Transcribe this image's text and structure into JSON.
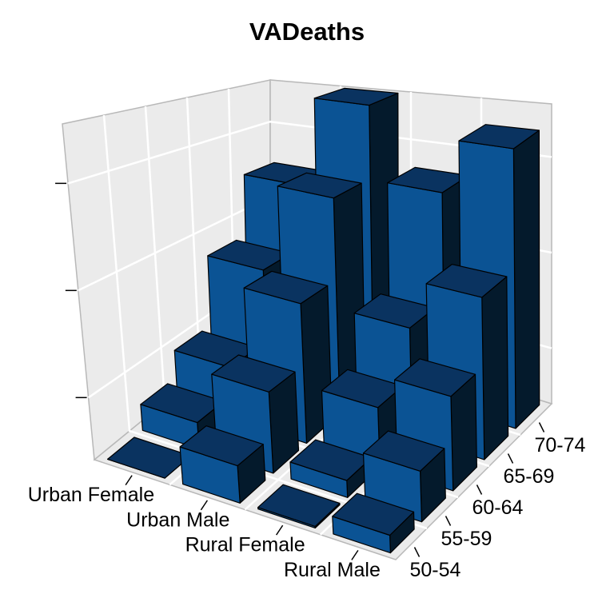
{
  "chart_data": {
    "type": "bar3d",
    "title": "VADeaths",
    "categories": [
      "50-54",
      "55-59",
      "60-64",
      "65-69",
      "70-74"
    ],
    "series": [
      {
        "name": "Urban Female",
        "values": [
          8.4,
          13.6,
          19.3,
          35.1,
          50.0
        ]
      },
      {
        "name": "Urban Male",
        "values": [
          15.4,
          24.3,
          37.0,
          54.6,
          71.1
        ]
      },
      {
        "name": "Rural Female",
        "values": [
          8.7,
          11.7,
          20.3,
          30.9,
          54.3
        ]
      },
      {
        "name": "Rural Male",
        "values": [
          11.7,
          18.1,
          26.9,
          41.0,
          66.0
        ]
      }
    ],
    "color": "#0b5394",
    "zlim": [
      8.4,
      71.1
    ],
    "zticks": [
      20,
      40,
      60
    ],
    "grid": true
  }
}
